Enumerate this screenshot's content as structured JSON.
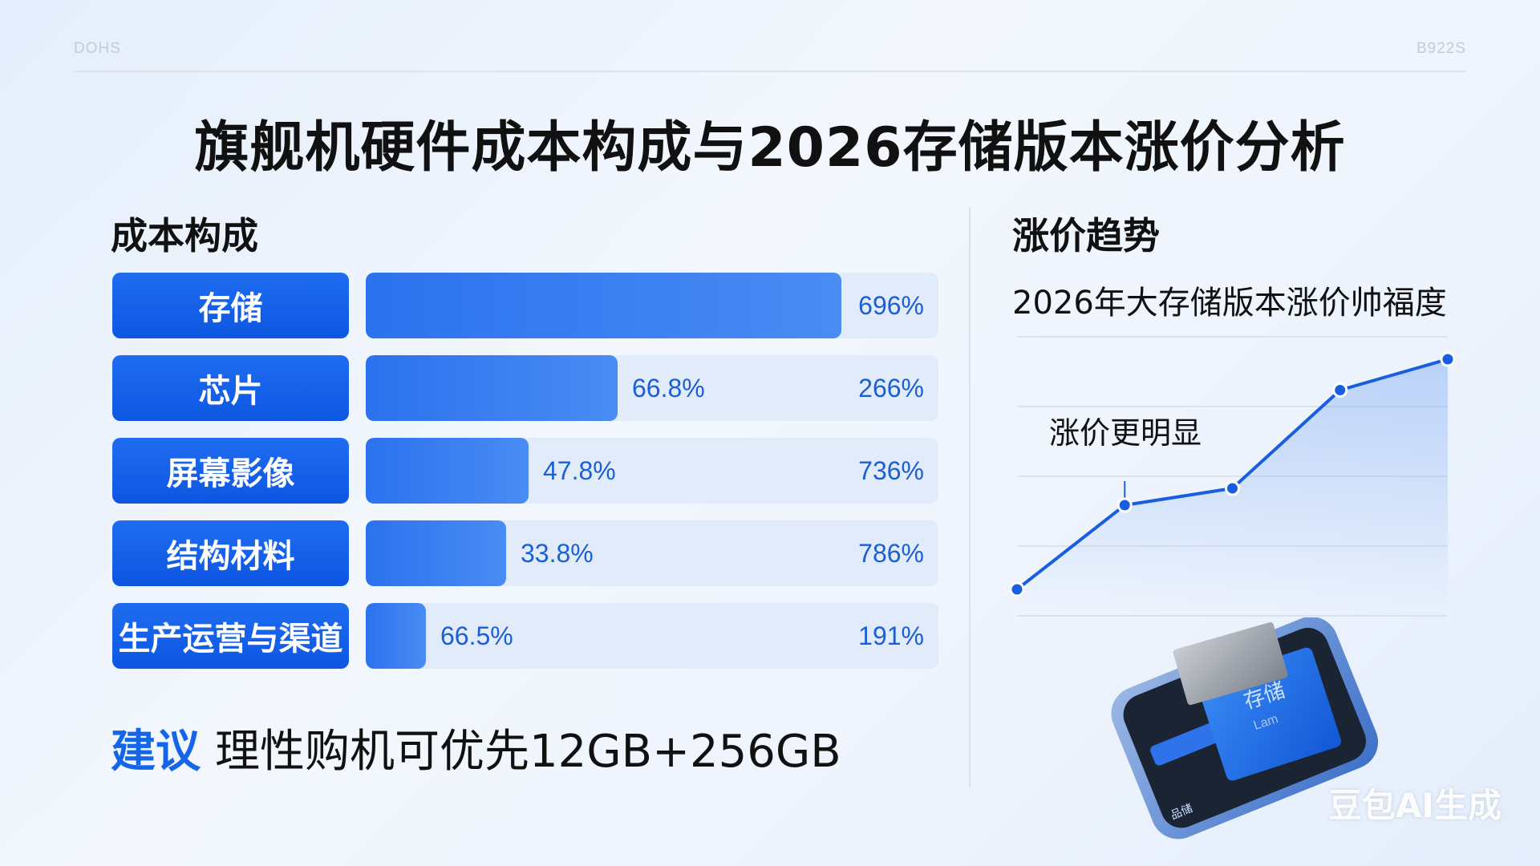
{
  "header": {
    "corner_left": "DOHS",
    "corner_right": "B922S",
    "title": "旗舰机硬件成本构成与2026存储版本涨价分析"
  },
  "cost": {
    "section_title": "成本构成",
    "rows": [
      {
        "label": "存储",
        "inner_value": "",
        "end_value": "696%",
        "fill": 0.83
      },
      {
        "label": "芯片",
        "inner_value": "66.8%",
        "end_value": "266%",
        "fill": 0.44
      },
      {
        "label": "屏幕影像",
        "inner_value": "47.8%",
        "end_value": "736%",
        "fill": 0.285
      },
      {
        "label": "结构材料",
        "inner_value": "33.8%",
        "end_value": "786%",
        "fill": 0.245
      },
      {
        "label": "生产运营与渠道",
        "inner_value": "66.5%",
        "end_value": "191%",
        "fill": 0.105
      }
    ]
  },
  "advice": {
    "accent": "建议",
    "text": "理性购机可优先12GB+256GB"
  },
  "trend": {
    "section_title": "涨价趋势",
    "subtitle": "2026年大存储版本涨价帅福度",
    "annotation": "涨价更明显"
  },
  "phone": {
    "card_text": "存储",
    "card_sub": "Lam",
    "key_label": "品储"
  },
  "watermark": "豆包AI生成",
  "colors": {
    "accent": "#1565e8",
    "bar": "#2b72ee",
    "track": "#e2ebf9",
    "line": "#1a5ee0"
  },
  "chart_data": [
    {
      "type": "bar",
      "title": "成本构成",
      "categories": [
        "存储",
        "芯片",
        "屏幕影像",
        "结构材料",
        "生产运营与渠道"
      ],
      "values": [
        0.83,
        0.44,
        0.285,
        0.245,
        0.105
      ],
      "value_labels": [
        "",
        "66.8%",
        "47.8%",
        "33.8%",
        "66.5%"
      ],
      "end_labels": [
        "696%",
        "266%",
        "736%",
        "786%",
        "191%"
      ],
      "orientation": "horizontal"
    },
    {
      "type": "line",
      "title": "2026年大存储版本涨价帅福度",
      "series": [
        {
          "values": [
            1,
            4,
            4.6,
            8.1,
            9.2
          ]
        }
      ],
      "x": [
        1,
        2,
        3,
        4,
        5
      ],
      "ylim": [
        0,
        10
      ],
      "grid": true,
      "annotation": "涨价更明显"
    }
  ]
}
